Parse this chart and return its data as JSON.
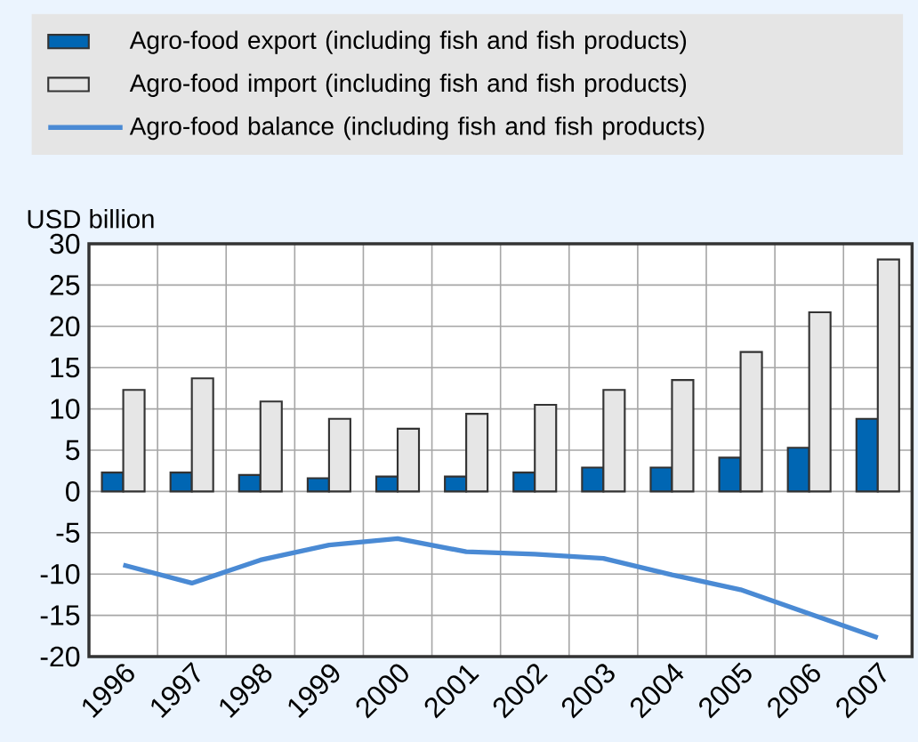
{
  "chart_data": {
    "type": "bar",
    "categories": [
      "1996",
      "1997",
      "1998",
      "1999",
      "2000",
      "2001",
      "2002",
      "2003",
      "2004",
      "2005",
      "2006",
      "2007"
    ],
    "ylabel": "USD billion",
    "series": [
      {
        "name": "Agro-food export (including fish and fish products)",
        "color": "#0066b3",
        "values": [
          2.3,
          2.3,
          2.0,
          1.6,
          1.8,
          1.8,
          2.3,
          2.9,
          2.9,
          4.1,
          5.3,
          8.8
        ]
      },
      {
        "name": "Agro-food import (including fish and fish products)",
        "color": "#e6e6e6",
        "values": [
          12.3,
          13.7,
          10.9,
          8.8,
          7.6,
          9.4,
          10.5,
          12.3,
          13.5,
          16.9,
          21.7,
          28.1
        ]
      },
      {
        "name": "Agro-food balance (including fish and fish products)",
        "type": "line",
        "color": "#4a8ad4",
        "values": [
          -8.9,
          -11.1,
          -8.3,
          -6.5,
          -5.7,
          -7.3,
          -7.6,
          -8.1,
          -10.1,
          -11.9,
          -14.8,
          -17.7
        ]
      }
    ],
    "ylim": [
      -20,
      30
    ],
    "yticks": [
      -20,
      -15,
      -10,
      -5,
      0,
      5,
      10,
      15,
      20,
      25,
      30
    ],
    "grid": true,
    "legend": "top",
    "marker": "none",
    "line_style": "solid"
  }
}
